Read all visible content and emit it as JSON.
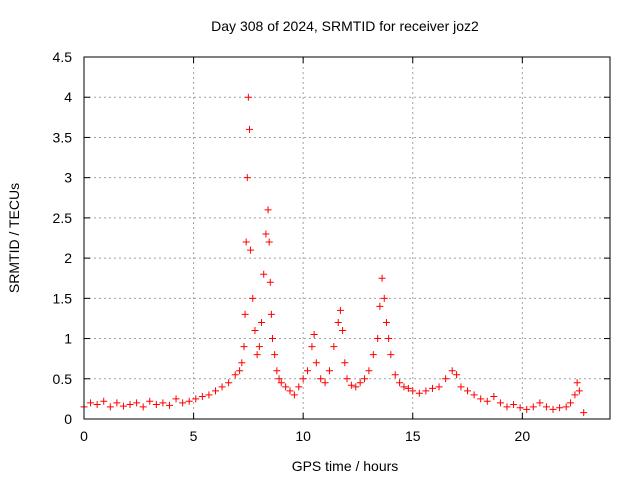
{
  "chart_data": {
    "type": "scatter",
    "title": "Day 308 of 2024, SRMTID for receiver joz2",
    "xlabel": "GPS time / hours",
    "ylabel": "SRMTID / TECUs",
    "xlim": [
      0,
      24
    ],
    "ylim": [
      0,
      4.5
    ],
    "xticks": [
      0,
      5,
      10,
      15,
      20
    ],
    "xtick_labels": [
      "0",
      "5",
      "10",
      "15",
      "20"
    ],
    "yticks": [
      0,
      0.5,
      1,
      1.5,
      2,
      2.5,
      3,
      3.5,
      4,
      4.5
    ],
    "ytick_labels": [
      "0",
      "0.5",
      "1",
      "1.5",
      "2",
      "2.5",
      "3",
      "3.5",
      "4",
      "4.5"
    ],
    "grid": true,
    "marker": "+",
    "series": [
      {
        "name": "SRMTID",
        "color": "#ff0000",
        "x": [
          0.0,
          0.3,
          0.6,
          0.9,
          1.2,
          1.5,
          1.8,
          2.1,
          2.4,
          2.7,
          3.0,
          3.3,
          3.6,
          3.9,
          4.2,
          4.5,
          4.8,
          5.1,
          5.4,
          5.7,
          6.0,
          6.3,
          6.6,
          6.9,
          7.1,
          7.2,
          7.3,
          7.35,
          7.4,
          7.45,
          7.5,
          7.55,
          7.6,
          7.7,
          7.8,
          7.9,
          8.0,
          8.1,
          8.2,
          8.3,
          8.4,
          8.45,
          8.5,
          8.55,
          8.6,
          8.7,
          8.8,
          8.9,
          9.0,
          9.2,
          9.4,
          9.6,
          9.8,
          10.0,
          10.2,
          10.4,
          10.5,
          10.6,
          10.8,
          11.0,
          11.2,
          11.4,
          11.6,
          11.7,
          11.8,
          11.9,
          12.0,
          12.2,
          12.4,
          12.6,
          12.8,
          13.0,
          13.2,
          13.4,
          13.5,
          13.6,
          13.7,
          13.8,
          13.9,
          14.0,
          14.2,
          14.4,
          14.6,
          14.8,
          15.0,
          15.3,
          15.6,
          15.9,
          16.2,
          16.5,
          16.8,
          17.0,
          17.2,
          17.5,
          17.8,
          18.1,
          18.4,
          18.7,
          19.0,
          19.3,
          19.6,
          19.9,
          20.2,
          20.5,
          20.8,
          21.1,
          21.4,
          21.7,
          22.0,
          22.2,
          22.4,
          22.5,
          22.6,
          22.8
        ],
        "y": [
          0.15,
          0.2,
          0.18,
          0.22,
          0.15,
          0.2,
          0.16,
          0.18,
          0.2,
          0.15,
          0.22,
          0.18,
          0.2,
          0.17,
          0.25,
          0.2,
          0.22,
          0.25,
          0.28,
          0.3,
          0.35,
          0.4,
          0.45,
          0.55,
          0.6,
          0.7,
          0.9,
          1.3,
          2.2,
          3.0,
          4.0,
          3.6,
          2.1,
          1.5,
          1.1,
          0.8,
          0.9,
          1.2,
          1.8,
          2.3,
          2.6,
          2.2,
          1.7,
          1.3,
          1.0,
          0.8,
          0.6,
          0.5,
          0.45,
          0.4,
          0.35,
          0.3,
          0.4,
          0.5,
          0.6,
          0.9,
          1.05,
          0.7,
          0.5,
          0.45,
          0.6,
          0.9,
          1.2,
          1.35,
          1.1,
          0.7,
          0.5,
          0.42,
          0.4,
          0.45,
          0.5,
          0.6,
          0.8,
          1.0,
          1.4,
          1.75,
          1.5,
          1.2,
          1.0,
          0.8,
          0.55,
          0.45,
          0.4,
          0.38,
          0.35,
          0.32,
          0.35,
          0.38,
          0.4,
          0.5,
          0.6,
          0.55,
          0.4,
          0.35,
          0.3,
          0.25,
          0.22,
          0.28,
          0.2,
          0.15,
          0.18,
          0.14,
          0.12,
          0.15,
          0.2,
          0.15,
          0.12,
          0.14,
          0.15,
          0.2,
          0.3,
          0.45,
          0.35,
          0.08
        ]
      }
    ]
  }
}
